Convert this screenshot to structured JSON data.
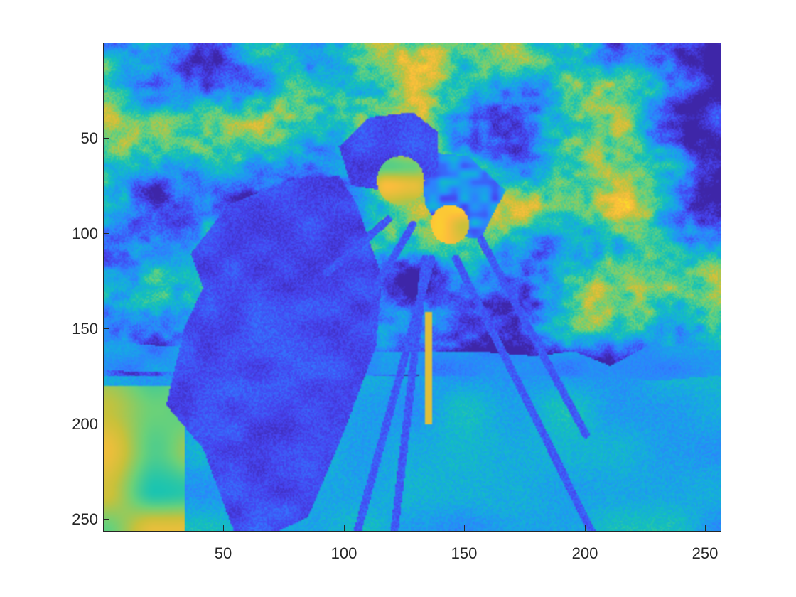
{
  "figure": {
    "image_description": "Cameraman photograph displayed with a parula-style false-color colormap",
    "colormap": [
      "#3e26a8",
      "#4743f0",
      "#2f80ff",
      "#17a7e6",
      "#14c3b6",
      "#6bd179",
      "#c9c13a",
      "#fdbd3c",
      "#f9e722"
    ]
  },
  "axes": {
    "x_ticks": [
      "50",
      "100",
      "150",
      "200",
      "250"
    ],
    "y_ticks": [
      "50",
      "100",
      "150",
      "200",
      "250"
    ],
    "x_range": [
      0.5,
      256.5
    ],
    "y_range": [
      0.5,
      256.5
    ]
  }
}
